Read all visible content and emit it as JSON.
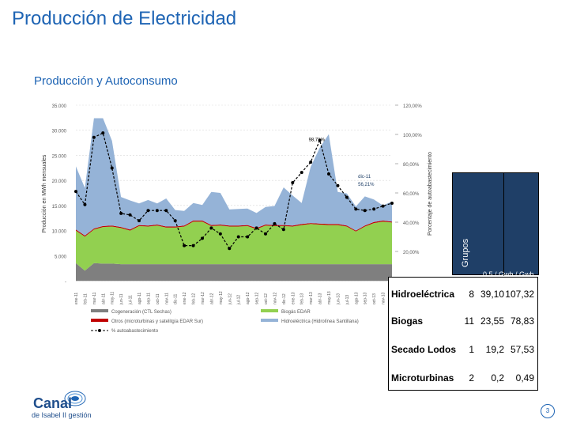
{
  "title": "Producción de Electricidad",
  "subtitle": "Producción y Autoconsumo",
  "chart_data": {
    "type": "area",
    "ylabel_left": "Producción en MWh mensuales",
    "ylabel_right": "Porcentaje de autoabastecimiento",
    "yticks_left": [
      "35.000",
      "30.000",
      "25.000",
      "20.000",
      "15.000",
      "10.000",
      "5.000",
      "-"
    ],
    "yticks_right": [
      "120,00%",
      "100,00%",
      "80,00%",
      "60,00%",
      "40,00%",
      "20,00%"
    ],
    "ylim_left": [
      0,
      35000
    ],
    "ylim_right": [
      0,
      120
    ],
    "x": [
      "ene-11",
      "feb-11",
      "mar-11",
      "abr-11",
      "may-11",
      "jun-11",
      "jul-11",
      "ago-11",
      "sep-11",
      "oct-11",
      "nov-11",
      "dic-11",
      "ene-12",
      "feb-12",
      "mar-12",
      "abr-12",
      "may-12",
      "jun-12",
      "jul-12",
      "ago-12",
      "sep-12",
      "oct-12",
      "nov-12",
      "dic-12",
      "ene-13",
      "feb-13",
      "mar-13",
      "abr-13",
      "may-13",
      "jun-13",
      "jul-13",
      "ago-13",
      "sep-13",
      "oct-13",
      "nov-13",
      "dic-13"
    ],
    "series": [
      {
        "name": "Cogeneración (CTL Sechas)",
        "color": "#7f7f7f",
        "values": [
          3500,
          2000,
          3500,
          3400,
          3400,
          3300,
          3300,
          3300,
          3300,
          3300,
          3300,
          3300,
          3300,
          3300,
          3300,
          3300,
          3300,
          3300,
          3300,
          3300,
          3300,
          3300,
          3300,
          3300,
          3300,
          3300,
          3300,
          3300,
          3300,
          3300,
          3300,
          3300,
          3300,
          3300,
          3300,
          3300
        ]
      },
      {
        "name": "Biogás EDAR",
        "color": "#92d050",
        "values": [
          6500,
          6800,
          6700,
          7300,
          7400,
          7200,
          6700,
          7600,
          7500,
          7700,
          7300,
          7300,
          7500,
          8500,
          8500,
          7600,
          7700,
          7500,
          7500,
          7600,
          7000,
          7700,
          7600,
          7600,
          7500,
          7800,
          8000,
          7900,
          7800,
          7800,
          7500,
          6500,
          7500,
          8200,
          8500,
          8300
        ]
      },
      {
        "name": "Otros (microturbinas y satelitgía EDAR Sur)",
        "color": "#c00000",
        "values": [
          200,
          200,
          200,
          200,
          200,
          200,
          200,
          200,
          200,
          200,
          200,
          200,
          200,
          200,
          200,
          200,
          200,
          200,
          200,
          200,
          200,
          200,
          200,
          200,
          200,
          200,
          200,
          200,
          200,
          200,
          200,
          200,
          200,
          200,
          200,
          200
        ]
      },
      {
        "name": "Hidroeléctrica (Hidrolínea Santillana)",
        "color": "#95b3d7",
        "values": [
          12600,
          9500,
          22000,
          21500,
          16900,
          6000,
          5800,
          4300,
          5100,
          4200,
          5600,
          3300,
          2900,
          3500,
          3100,
          6600,
          6300,
          3200,
          3300,
          3300,
          3000,
          3500,
          3800,
          7500,
          6000,
          4200,
          11200,
          15100,
          17900,
          6400,
          6400,
          4800,
          5800,
          4500,
          3000,
          4000
        ]
      }
    ],
    "line_series": {
      "name": "% autoabastecimiento",
      "color": "#000000",
      "values": [
        61,
        52,
        98,
        101,
        77,
        46,
        45,
        41,
        48,
        48,
        48,
        41,
        24,
        24,
        29,
        36,
        32,
        22,
        30,
        30,
        36,
        32,
        39,
        35,
        67,
        74,
        81,
        96,
        73,
        65,
        57,
        49,
        48,
        49,
        51,
        53
      ]
    },
    "annotations": [
      {
        "text": "98,71%",
        "series_index": 27
      },
      {
        "text": "dic-11",
        "series_index": 33
      },
      {
        "text": "56,21%",
        "series_index": 33
      }
    ],
    "legend": [
      {
        "label": "Cogeneración (CTL Sechas)",
        "color": "#7f7f7f"
      },
      {
        "label": "Biogás EDAR",
        "color": "#92d050"
      },
      {
        "label": "Otros (microturbinas y satelitgía EDAR Sur)",
        "color": "#c00000"
      },
      {
        "label": "Hidroeléctrica (Hidrolínea Santillana)",
        "color": "#95b3d7"
      },
      {
        "label": "% autoabastecimiento",
        "color": "#000000"
      }
    ]
  },
  "table": {
    "header_label": "Grupos",
    "header_units": "0,5 / Gwh / Gwh",
    "rows": [
      {
        "name": "Hidroeléctrica",
        "c1": "8",
        "c2": "39,10",
        "c3": "107,32"
      },
      {
        "name": "Biogas",
        "c1": "11",
        "c2": "23,55",
        "c3": "78,83"
      },
      {
        "name": "Secado Lodos",
        "c1": "1",
        "c2": "19,2",
        "c3": "57,53"
      },
      {
        "name": "Microturbinas",
        "c1": "2",
        "c2": "0,2",
        "c3": "0,49"
      }
    ]
  },
  "logo": {
    "name": "Canal",
    "sub": "de Isabel II gestión"
  },
  "page_number": "3"
}
